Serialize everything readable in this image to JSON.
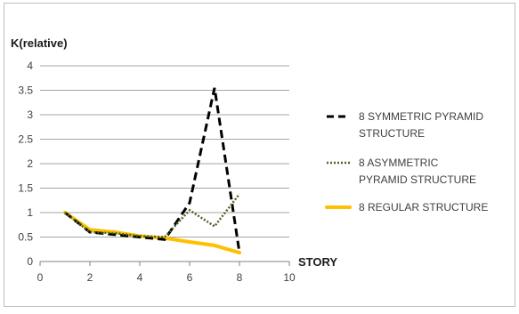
{
  "chart_data": {
    "type": "line",
    "xlabel": "STORY",
    "ylabel": "K(relative)",
    "xlim": [
      0,
      10
    ],
    "ylim": [
      0,
      4
    ],
    "xticks": [
      "0",
      "2",
      "4",
      "6",
      "8",
      "10"
    ],
    "yticks": [
      "0",
      "0.5",
      "1",
      "1.5",
      "2",
      "2.5",
      "3",
      "3.5",
      "4"
    ],
    "grid": "horizontal",
    "legend_position": "right",
    "series": [
      {
        "name": "8 SYMMETRIC PYRAMID STRUCTURE",
        "legend_lines": [
          "8 SYMMETRIC PYRAMID",
          "STRUCTURE"
        ],
        "style": "dashed",
        "color": "#000000",
        "x": [
          1,
          2,
          3,
          4,
          5,
          6,
          7,
          8
        ],
        "y": [
          1.0,
          0.6,
          0.55,
          0.5,
          0.45,
          1.2,
          3.55,
          0.18
        ]
      },
      {
        "name": "8 ASYMMETRIC PYRAMID STRUCTURE",
        "legend_lines": [
          "8 ASYMMETRIC",
          "PYRAMID STRUCTURE"
        ],
        "style": "dotted",
        "color": "#4f6228",
        "x": [
          1,
          2,
          3,
          4,
          5,
          6,
          7,
          8
        ],
        "y": [
          1.0,
          0.6,
          0.58,
          0.52,
          0.5,
          1.05,
          0.72,
          1.38
        ]
      },
      {
        "name": "8 REGULAR STRUCTURE",
        "legend_lines": [
          "8 REGULAR STRUCTURE"
        ],
        "style": "solid",
        "color": "#ffc000",
        "x": [
          1,
          2,
          3,
          4,
          5,
          6,
          7,
          8
        ],
        "y": [
          1.0,
          0.65,
          0.6,
          0.52,
          0.48,
          0.4,
          0.33,
          0.18
        ]
      }
    ]
  }
}
